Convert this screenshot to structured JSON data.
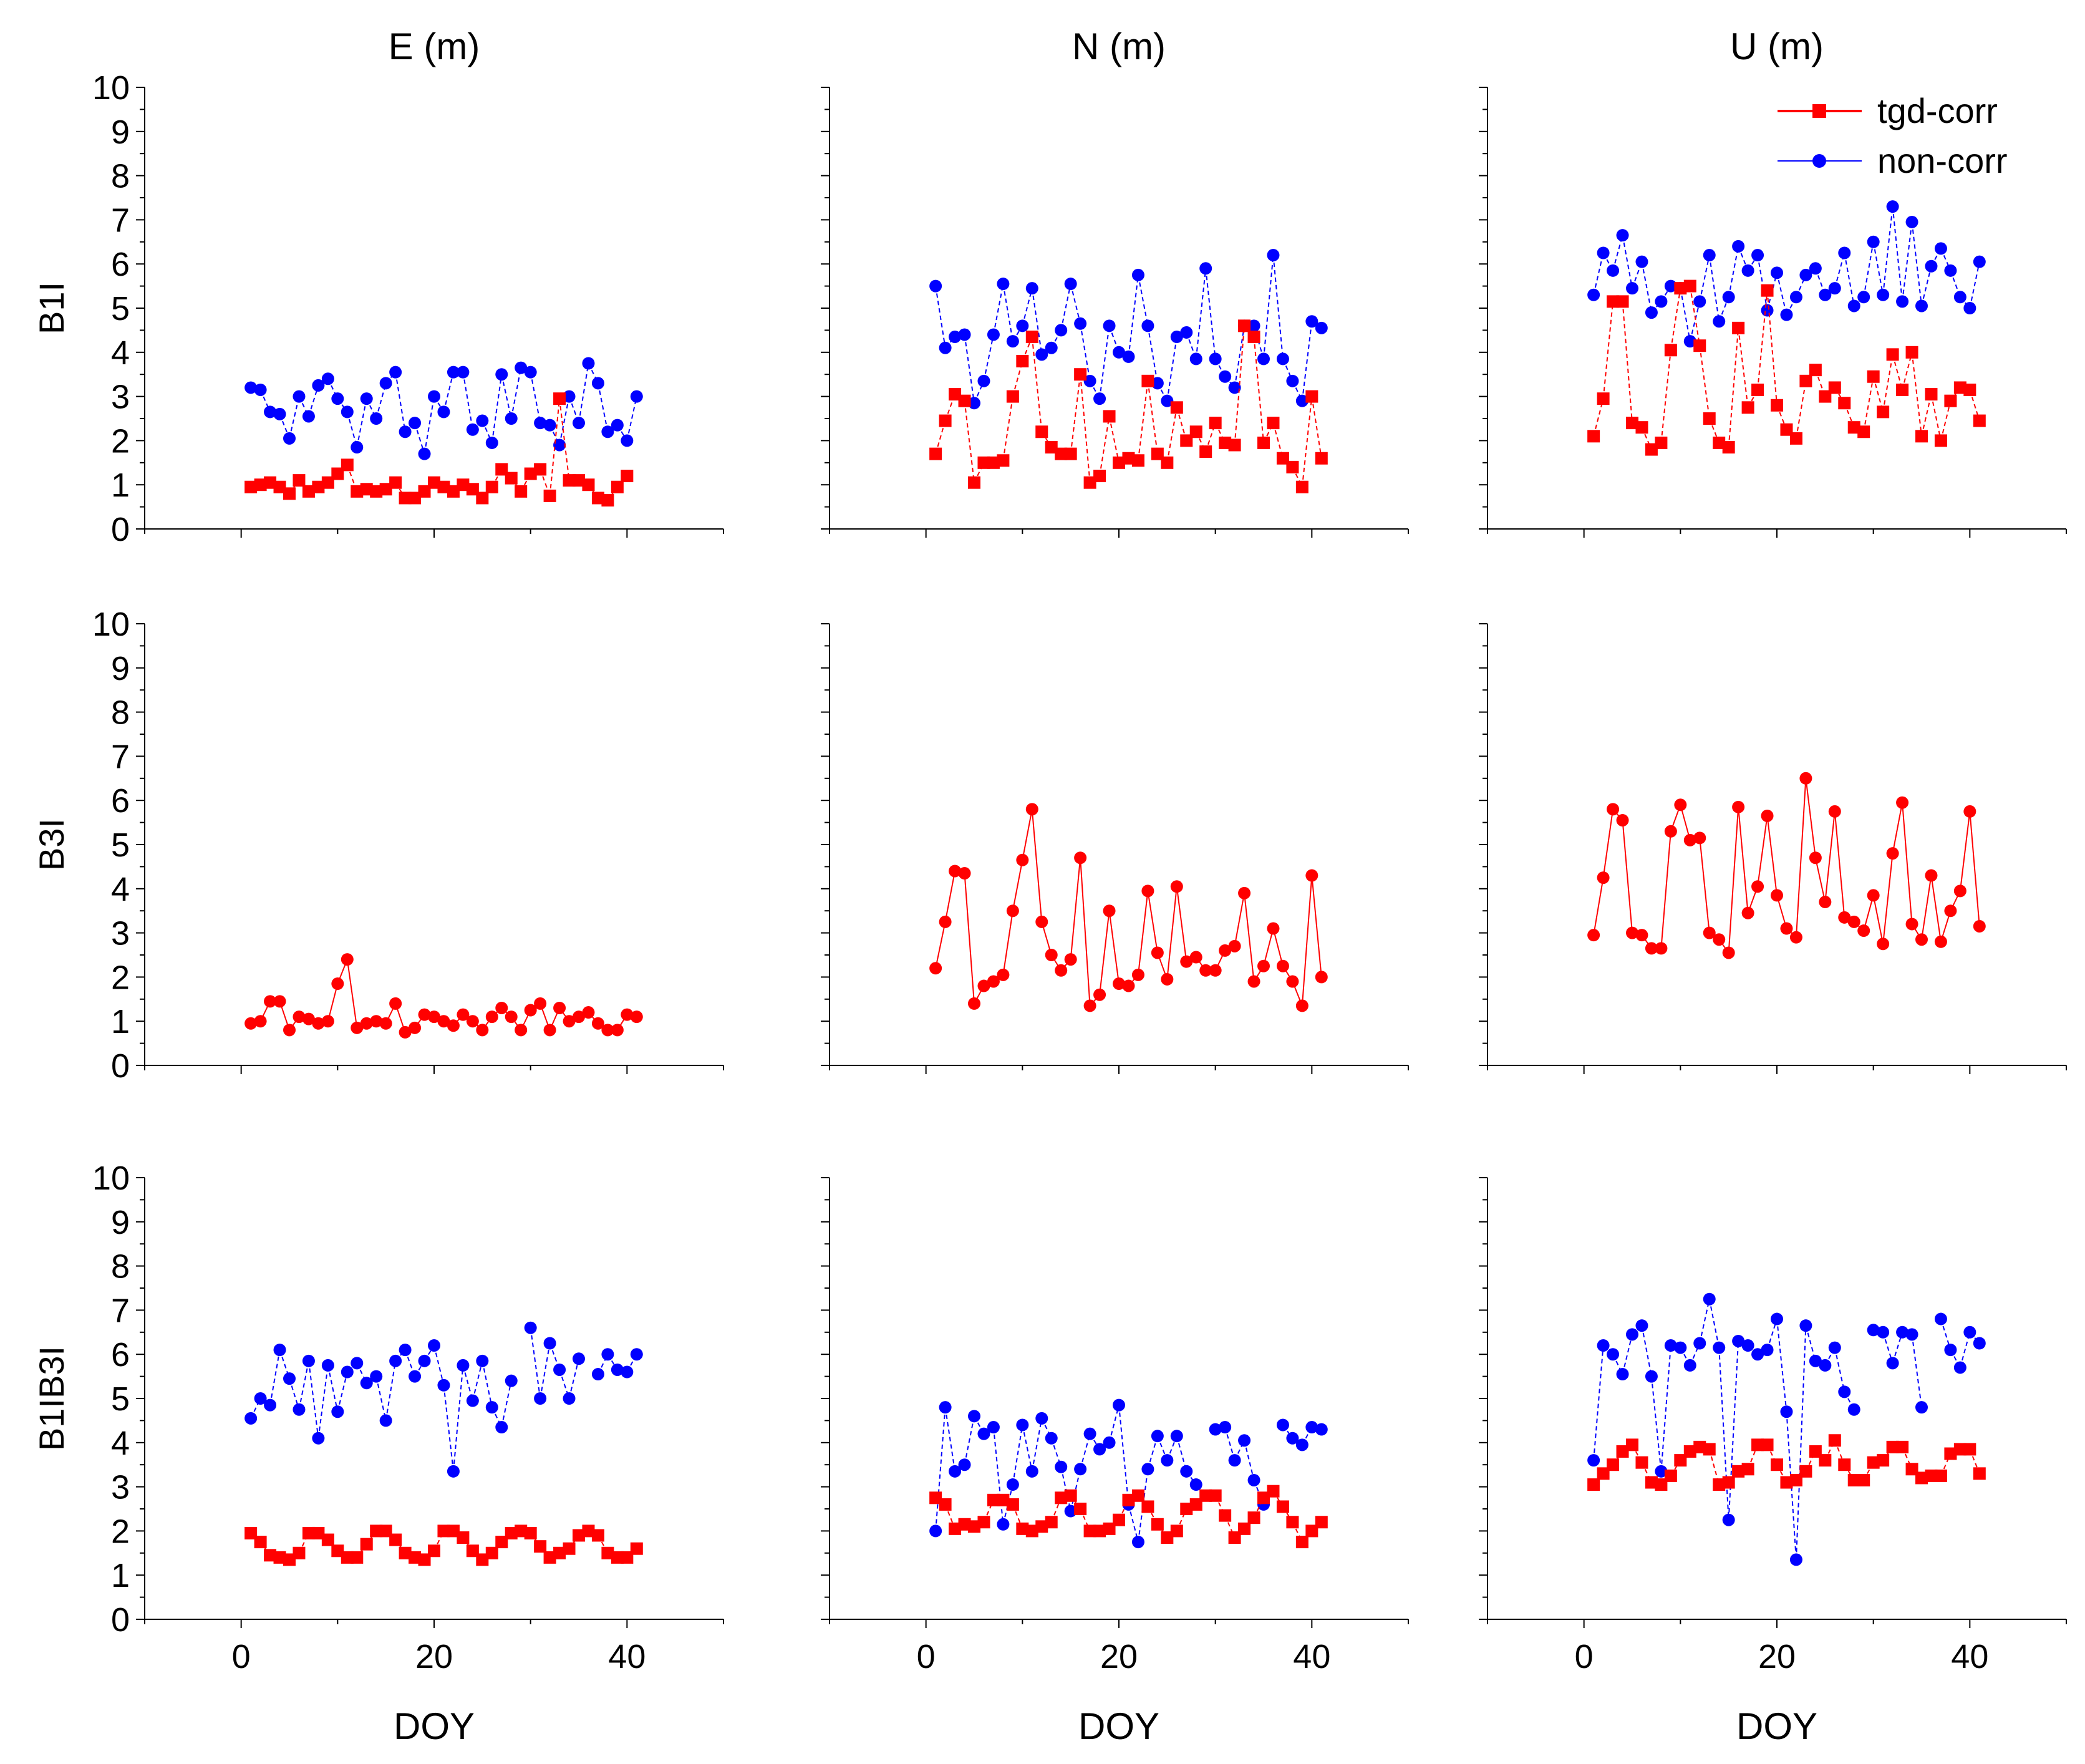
{
  "figure": {
    "columns": [
      "E (m)",
      "N  (m)",
      "U (m)"
    ],
    "rows": [
      "B1I",
      "B3I",
      "B1IB3I"
    ],
    "xlabel": "DOY",
    "legend": {
      "tgd": "tgd-corr",
      "non": "non-corr"
    },
    "colors": {
      "tgd": "#ff0000",
      "non": "#0000ff",
      "axis": "#000000"
    }
  },
  "chart_data": {
    "type": "line",
    "layout": "3x3 grid of panels; rows = signal, columns = coordinate component",
    "x": [
      1,
      2,
      3,
      4,
      5,
      6,
      7,
      8,
      9,
      10,
      11,
      12,
      13,
      14,
      15,
      16,
      17,
      18,
      19,
      20,
      21,
      22,
      23,
      24,
      25,
      26,
      27,
      28,
      29,
      30,
      31,
      32,
      33,
      34,
      35,
      36,
      37,
      38,
      39,
      40,
      41
    ],
    "xlim": [
      -10,
      50
    ],
    "xticks": [
      0,
      20,
      40
    ],
    "ylim": [
      0,
      10
    ],
    "yticks": [
      0,
      1,
      2,
      3,
      4,
      5,
      6,
      7,
      8,
      9,
      10
    ],
    "panels": [
      {
        "row": "B1I",
        "col": "E (m)",
        "series": [
          {
            "name": "tgd-corr",
            "marker": "square",
            "values": [
              0.95,
              1.0,
              1.05,
              0.95,
              0.8,
              1.1,
              0.85,
              0.95,
              1.05,
              1.25,
              1.45,
              0.85,
              0.9,
              0.85,
              0.9,
              1.05,
              0.7,
              0.7,
              0.85,
              1.05,
              0.95,
              0.85,
              1.0,
              0.9,
              0.7,
              0.95,
              1.35,
              1.15,
              0.85,
              1.25,
              1.35,
              0.75,
              2.95,
              1.1,
              1.1,
              1.0,
              0.7,
              0.65,
              0.95,
              1.2,
              null
            ]
          },
          {
            "name": "non-corr",
            "marker": "circle",
            "values": [
              3.2,
              3.15,
              2.65,
              2.6,
              2.05,
              3.0,
              2.55,
              3.25,
              3.4,
              2.95,
              2.65,
              1.85,
              2.95,
              2.5,
              3.3,
              3.55,
              2.2,
              2.4,
              1.7,
              3.0,
              2.65,
              3.55,
              3.55,
              2.25,
              2.45,
              1.95,
              3.5,
              2.5,
              3.65,
              3.55,
              2.4,
              2.35,
              1.9,
              3.0,
              2.4,
              3.75,
              3.3,
              2.2,
              2.35,
              2.0,
              3.0
            ]
          }
        ]
      },
      {
        "row": "B1I",
        "col": "N  (m)",
        "series": [
          {
            "name": "tgd-corr",
            "marker": "square",
            "values": [
              1.7,
              2.45,
              3.05,
              2.9,
              1.05,
              1.5,
              1.5,
              1.55,
              3.0,
              3.8,
              4.35,
              2.2,
              1.85,
              1.7,
              1.7,
              3.5,
              1.05,
              1.2,
              2.55,
              1.5,
              1.6,
              1.55,
              3.35,
              1.7,
              1.5,
              2.75,
              2.0,
              2.2,
              1.75,
              2.4,
              1.95,
              1.9,
              4.6,
              4.35,
              1.95,
              2.4,
              1.6,
              1.4,
              0.95,
              3.0,
              1.6
            ]
          },
          {
            "name": "non-corr",
            "marker": "circle",
            "values": [
              5.5,
              4.1,
              4.35,
              4.4,
              2.85,
              3.35,
              4.4,
              5.55,
              4.25,
              4.6,
              5.45,
              3.95,
              4.1,
              4.5,
              5.55,
              4.65,
              3.35,
              2.95,
              4.6,
              4.0,
              3.9,
              5.75,
              4.6,
              3.3,
              2.9,
              4.35,
              4.45,
              3.85,
              5.9,
              3.85,
              3.45,
              3.2,
              4.6,
              4.6,
              3.85,
              6.2,
              3.85,
              3.35,
              2.9,
              4.7,
              4.55
            ]
          }
        ]
      },
      {
        "row": "B1I",
        "col": "U (m)",
        "series": [
          {
            "name": "tgd-corr",
            "marker": "square",
            "values": [
              2.1,
              2.95,
              5.15,
              5.15,
              2.4,
              2.3,
              1.8,
              1.95,
              4.05,
              5.45,
              5.5,
              4.15,
              2.5,
              1.95,
              1.85,
              4.55,
              2.75,
              3.15,
              5.4,
              2.8,
              2.25,
              2.05,
              3.35,
              3.6,
              3.0,
              3.2,
              2.85,
              2.3,
              2.2,
              3.45,
              2.65,
              3.95,
              3.15,
              4.0,
              2.1,
              3.05,
              2.0,
              2.9,
              3.2,
              3.15,
              2.45
            ]
          },
          {
            "name": "non-corr",
            "marker": "circle",
            "values": [
              5.3,
              6.25,
              5.85,
              6.65,
              5.45,
              6.05,
              4.9,
              5.15,
              5.5,
              5.45,
              4.25,
              5.15,
              6.2,
              4.7,
              5.25,
              6.4,
              5.85,
              6.2,
              4.95,
              5.8,
              4.85,
              5.25,
              5.75,
              5.9,
              5.3,
              5.45,
              6.25,
              5.05,
              5.25,
              6.5,
              5.3,
              7.3,
              5.15,
              6.95,
              5.05,
              5.95,
              6.35,
              5.85,
              5.25,
              5.0,
              6.05
            ]
          }
        ]
      },
      {
        "row": "B3I",
        "col": "E (m)",
        "series": [
          {
            "name": "tgd-corr",
            "marker": "circle",
            "values": [
              0.95,
              1.0,
              1.45,
              1.45,
              0.8,
              1.1,
              1.05,
              0.95,
              1.0,
              1.85,
              2.4,
              0.85,
              0.95,
              1.0,
              0.95,
              1.4,
              0.75,
              0.85,
              1.15,
              1.1,
              1.0,
              0.9,
              1.15,
              1.0,
              0.8,
              1.1,
              1.3,
              1.1,
              0.8,
              1.25,
              1.4,
              0.8,
              1.3,
              1.0,
              1.1,
              1.2,
              0.95,
              0.8,
              0.8,
              1.15,
              1.1
            ]
          }
        ]
      },
      {
        "row": "B3I",
        "col": "N  (m)",
        "series": [
          {
            "name": "tgd-corr",
            "marker": "circle",
            "values": [
              2.2,
              3.25,
              4.4,
              4.35,
              1.4,
              1.8,
              1.9,
              2.05,
              3.5,
              4.65,
              5.8,
              3.25,
              2.5,
              2.15,
              2.4,
              4.7,
              1.35,
              1.6,
              3.5,
              1.85,
              1.8,
              2.05,
              3.95,
              2.55,
              1.95,
              4.05,
              2.35,
              2.45,
              2.15,
              2.15,
              2.6,
              2.7,
              3.9,
              1.9,
              2.25,
              3.1,
              2.25,
              1.9,
              1.35,
              4.3,
              2.0
            ]
          }
        ]
      },
      {
        "row": "B3I",
        "col": "U (m)",
        "series": [
          {
            "name": "tgd-corr",
            "marker": "circle",
            "values": [
              2.95,
              4.25,
              5.8,
              5.55,
              3.0,
              2.95,
              2.65,
              2.65,
              5.3,
              5.9,
              5.1,
              5.15,
              3.0,
              2.85,
              2.55,
              5.85,
              3.45,
              4.05,
              5.65,
              3.85,
              3.1,
              2.9,
              6.5,
              4.7,
              3.7,
              5.75,
              3.35,
              3.25,
              3.05,
              3.85,
              2.75,
              4.8,
              5.95,
              3.2,
              2.85,
              4.3,
              2.8,
              3.5,
              3.95,
              5.75,
              3.15
            ]
          }
        ]
      },
      {
        "row": "B1IB3I",
        "col": "E (m)",
        "series": [
          {
            "name": "tgd-corr",
            "marker": "square",
            "values": [
              1.95,
              1.75,
              1.45,
              1.4,
              1.35,
              1.5,
              1.95,
              1.95,
              1.8,
              1.55,
              1.4,
              1.4,
              1.7,
              2.0,
              2.0,
              1.8,
              1.5,
              1.4,
              1.35,
              1.55,
              2.0,
              2.0,
              1.85,
              1.55,
              1.35,
              1.5,
              1.75,
              1.95,
              2.0,
              1.95,
              1.65,
              1.4,
              1.5,
              1.6,
              1.9,
              2.0,
              1.9,
              1.5,
              1.4,
              1.4,
              1.6
            ]
          },
          {
            "name": "non-corr",
            "marker": "circle",
            "values": [
              4.55,
              5.0,
              4.85,
              6.1,
              5.45,
              4.75,
              5.85,
              4.1,
              5.75,
              4.7,
              5.6,
              5.8,
              5.35,
              5.5,
              4.5,
              5.85,
              6.1,
              5.5,
              5.85,
              6.2,
              5.3,
              3.35,
              5.75,
              4.95,
              5.85,
              4.8,
              4.35,
              5.4,
              null,
              6.6,
              5.0,
              6.25,
              5.65,
              5.0,
              5.9,
              null,
              5.55,
              6.0,
              5.65,
              5.6,
              6.0
            ]
          }
        ]
      },
      {
        "row": "B1IB3I",
        "col": "N  (m)",
        "series": [
          {
            "name": "tgd-corr",
            "marker": "square",
            "values": [
              2.75,
              2.6,
              2.05,
              2.15,
              2.1,
              2.2,
              2.7,
              2.7,
              2.6,
              2.05,
              2.0,
              2.1,
              2.2,
              2.75,
              2.8,
              2.5,
              2.0,
              2.0,
              2.05,
              2.25,
              2.7,
              2.8,
              2.55,
              2.15,
              1.85,
              2.0,
              2.5,
              2.6,
              2.8,
              2.8,
              2.35,
              1.85,
              2.05,
              2.3,
              2.75,
              2.9,
              2.55,
              2.2,
              1.75,
              2.0,
              2.2
            ]
          },
          {
            "name": "non-corr",
            "marker": "circle",
            "values": [
              2.0,
              4.8,
              3.35,
              3.5,
              4.6,
              4.2,
              4.35,
              2.15,
              3.05,
              4.4,
              3.35,
              4.55,
              4.1,
              3.45,
              2.45,
              3.4,
              4.2,
              3.85,
              4.0,
              4.85,
              2.6,
              1.75,
              3.4,
              4.15,
              3.6,
              4.15,
              3.35,
              3.05,
              null,
              4.3,
              4.35,
              3.6,
              4.05,
              3.15,
              2.6,
              null,
              4.4,
              4.1,
              3.95,
              4.35,
              4.3
            ]
          }
        ]
      },
      {
        "row": "B1IB3I",
        "col": "U (m)",
        "series": [
          {
            "name": "tgd-corr",
            "marker": "square",
            "values": [
              3.05,
              3.3,
              3.5,
              3.8,
              3.95,
              3.55,
              3.1,
              3.05,
              3.25,
              3.6,
              3.8,
              3.9,
              3.85,
              3.05,
              3.1,
              3.35,
              3.4,
              3.95,
              3.95,
              3.5,
              3.1,
              3.15,
              3.35,
              3.8,
              3.6,
              4.05,
              3.5,
              3.15,
              3.15,
              3.55,
              3.6,
              3.9,
              3.9,
              3.4,
              3.2,
              3.25,
              3.25,
              3.75,
              3.85,
              3.85,
              3.3
            ]
          },
          {
            "name": "non-corr",
            "marker": "circle",
            "values": [
              3.6,
              6.2,
              6.0,
              5.55,
              6.45,
              6.65,
              5.5,
              3.35,
              6.2,
              6.15,
              5.75,
              6.25,
              7.25,
              6.15,
              2.25,
              6.3,
              6.2,
              6.0,
              6.1,
              6.8,
              4.7,
              1.35,
              6.65,
              5.85,
              5.75,
              6.15,
              5.15,
              4.75,
              null,
              6.55,
              6.5,
              5.8,
              6.5,
              6.45,
              4.8,
              null,
              6.8,
              6.1,
              5.7,
              6.5,
              6.25
            ]
          }
        ]
      }
    ]
  }
}
